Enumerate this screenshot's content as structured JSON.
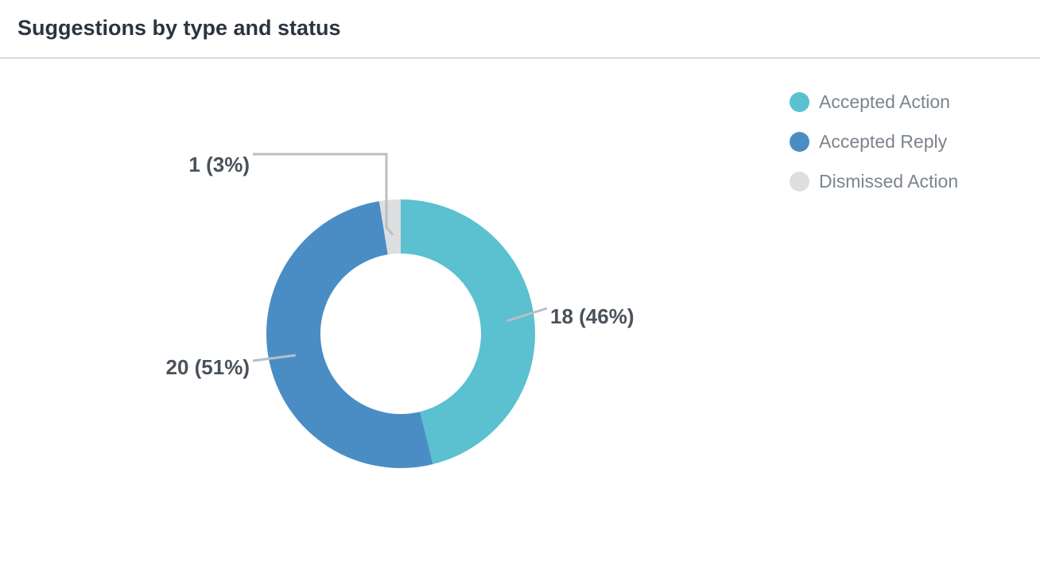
{
  "panel": {
    "title": "Suggestions by type and status"
  },
  "colors": {
    "accepted_action": "#5bc0cf",
    "accepted_reply": "#4a8dc5",
    "dismissed_action": "#dcdee0",
    "leader_line": "#bbbec2",
    "label_text": "#4a525b"
  },
  "chart_data": {
    "type": "pie",
    "donut": true,
    "title": "Suggestions by type and status",
    "legend_position": "top-right",
    "slices": [
      {
        "name": "Accepted Action",
        "value": 18,
        "percent": 46,
        "label": "18 (46%)",
        "color": "#5bc0cf"
      },
      {
        "name": "Accepted Reply",
        "value": 20,
        "percent": 51,
        "label": "20 (51%)",
        "color": "#4a8dc5"
      },
      {
        "name": "Dismissed Action",
        "value": 1,
        "percent": 3,
        "label": "1 (3%)",
        "color": "#dcdee0"
      }
    ]
  }
}
